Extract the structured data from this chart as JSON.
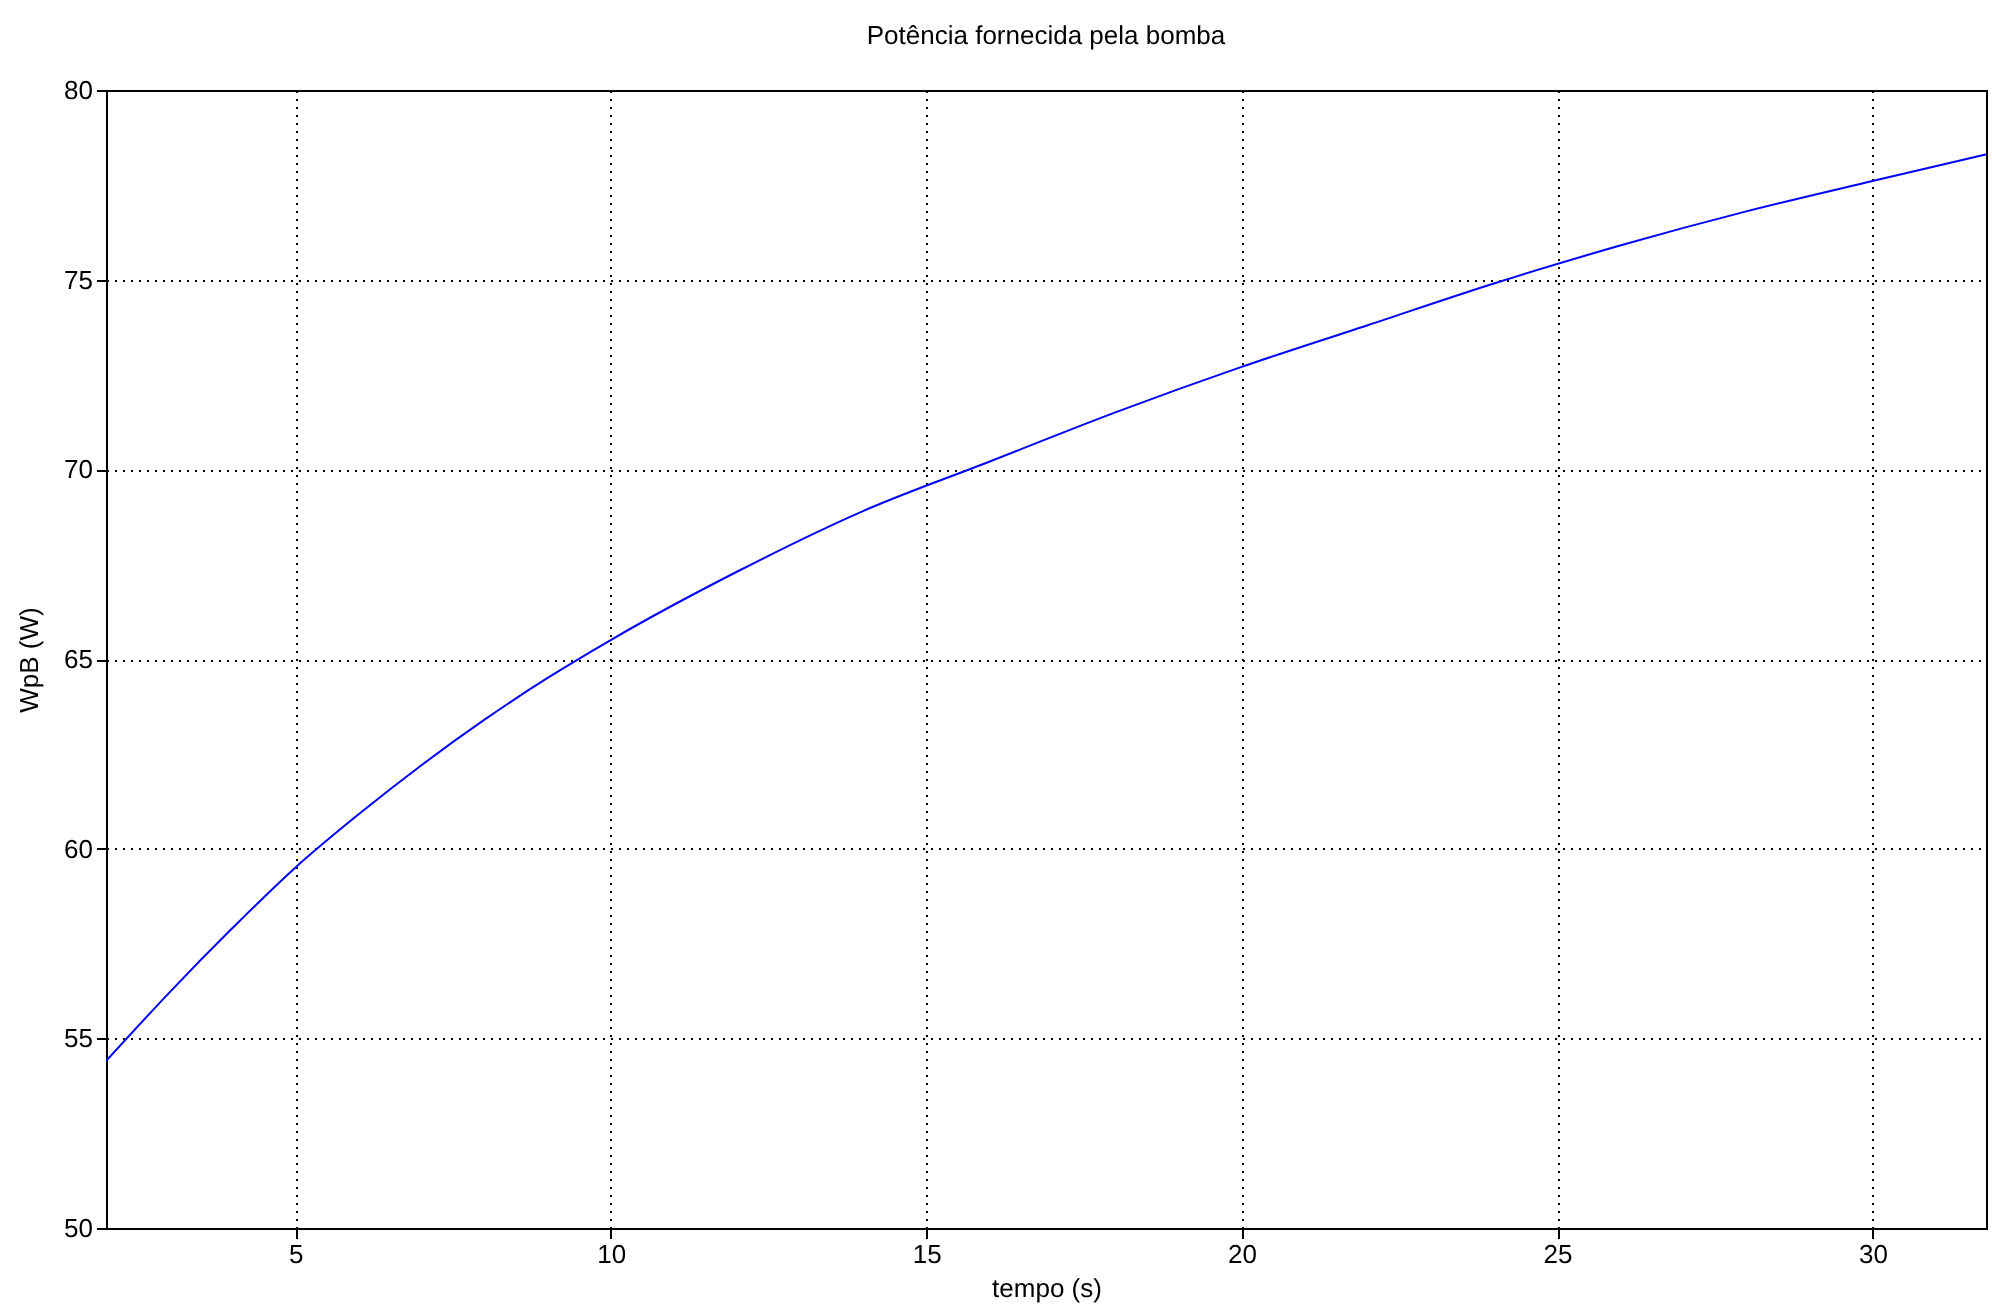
{
  "chart_data": {
    "type": "line",
    "title": "Potência fornecida pela bomba",
    "xlabel": "tempo (s)",
    "ylabel": "WpB (W)",
    "x": [
      2,
      3,
      4,
      5,
      6,
      7,
      8,
      9,
      10,
      12,
      14,
      16,
      18,
      20,
      22,
      24,
      26,
      28,
      30,
      31.8
    ],
    "values": [
      54.4,
      56.2,
      57.9,
      59.5,
      60.9,
      62.2,
      63.4,
      64.5,
      65.5,
      67.3,
      68.9,
      70.2,
      71.5,
      72.7,
      73.8,
      74.9,
      75.9,
      76.8,
      77.6,
      78.3
    ],
    "color": "#0000ff",
    "xlim": [
      2,
      31.8
    ],
    "ylim": [
      50,
      80
    ],
    "xticks": [
      5,
      10,
      15,
      20,
      25,
      30
    ],
    "yticks": [
      50,
      55,
      60,
      65,
      70,
      75,
      80
    ],
    "grid": true
  }
}
